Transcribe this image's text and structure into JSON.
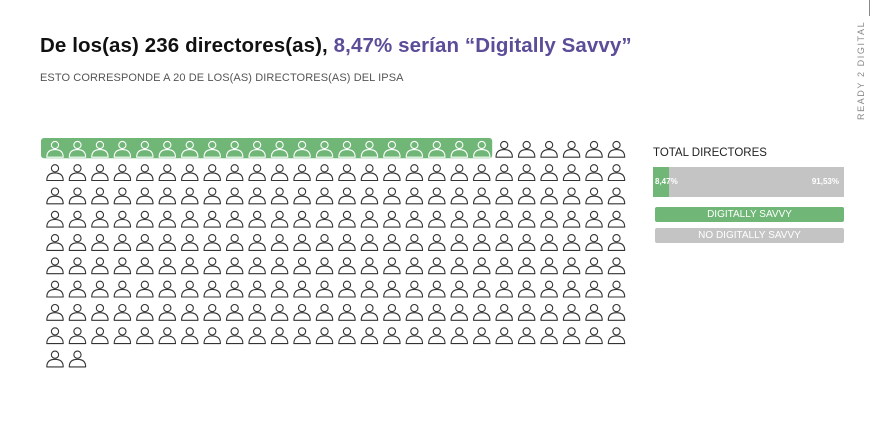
{
  "header": {
    "title_main": "De los(as) 236 directores(as),",
    "title_accent": "8,47% serían “Digitally Savvy”",
    "subtitle": "ESTO CORRESPONDE A 20 DE LOS(AS) DIRECTORES(AS) DEL IPSA"
  },
  "brand": {
    "text": "READY 2 DIGITAL"
  },
  "colors": {
    "accent": "#5c4d99",
    "savvy": "#6fb677",
    "not_savvy": "#c4c4c4",
    "icon_stroke": "#333333"
  },
  "chart_data": {
    "type": "waffle",
    "unit": "person-icon",
    "total": 236,
    "columns": 26,
    "categories": [
      "DIGITALLY SAVVY",
      "NO DIGITALLY SAVVY"
    ],
    "values": [
      20,
      216
    ],
    "percent_labels": [
      "8,47%",
      "91,53%"
    ],
    "percents": [
      8.47,
      91.53
    ],
    "legend_title": "TOTAL DIRECTORES"
  }
}
